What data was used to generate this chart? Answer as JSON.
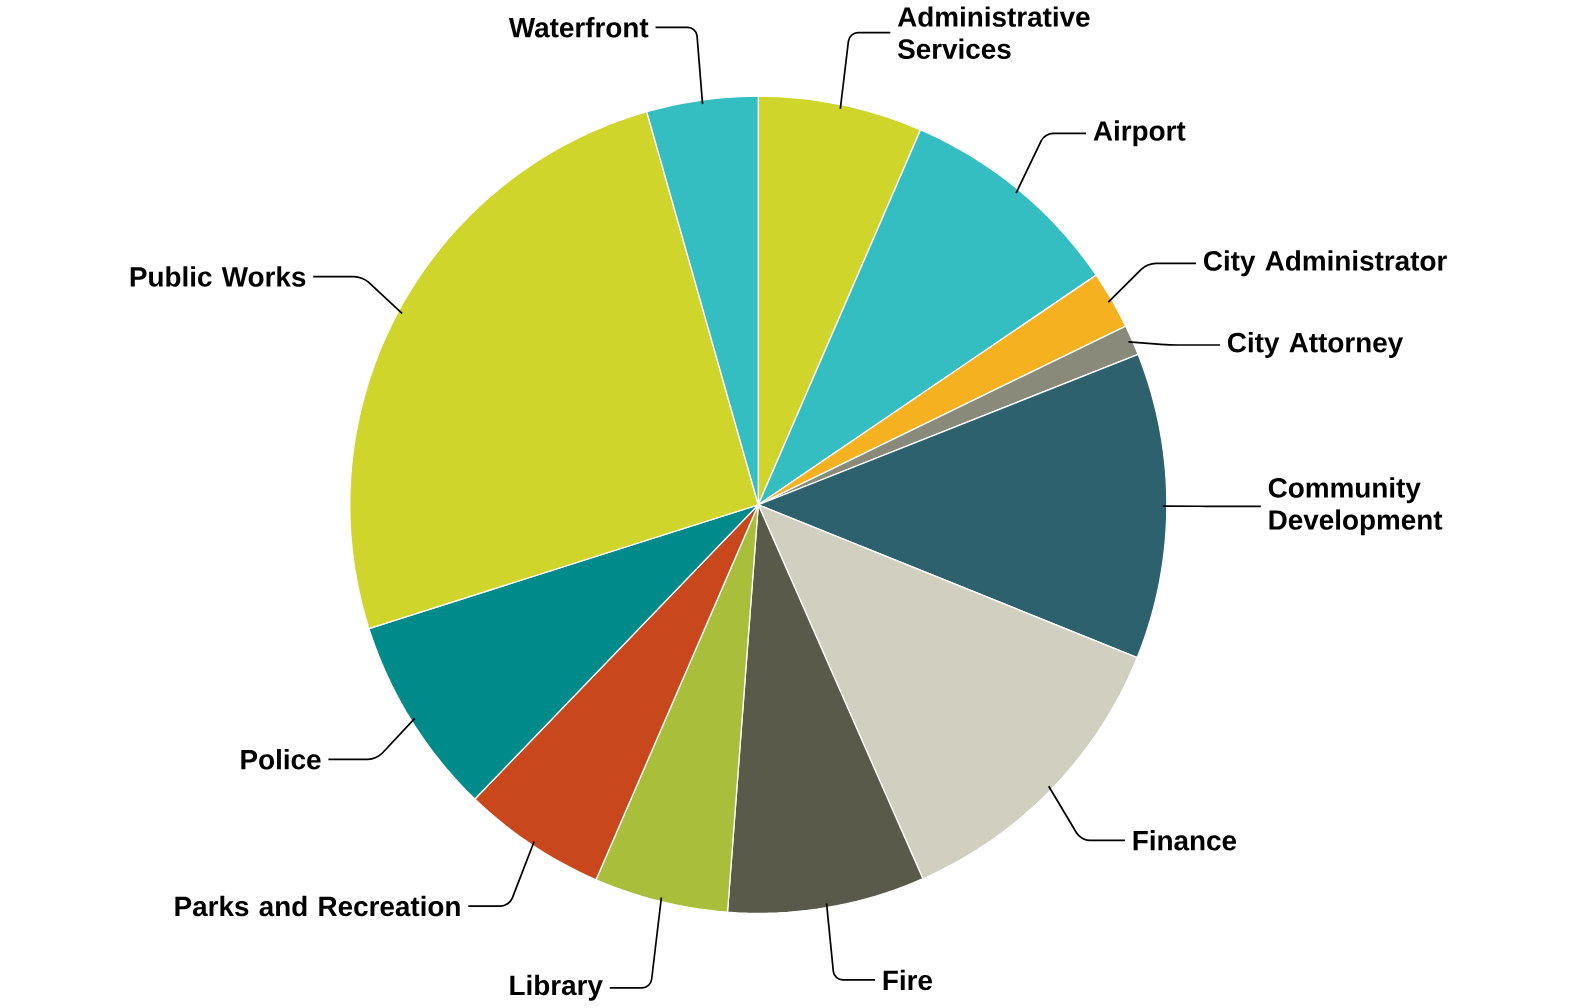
{
  "chart_data": {
    "type": "pie",
    "categories": [
      "Administrative Services",
      "Airport",
      "City Administrator",
      "City Attorney",
      "Community Development",
      "Finance",
      "Fire",
      "Library",
      "Parks and Recreation",
      "Police",
      "Public Works",
      "Waterfront"
    ],
    "values": [
      6.5,
      9.0,
      2.3,
      1.2,
      12.1,
      12.3,
      7.8,
      5.3,
      5.7,
      7.9,
      25.5,
      4.4
    ],
    "colors": [
      "#cfd52a",
      "#35bec1",
      "#f5b120",
      "#8a8a7a",
      "#2e616e",
      "#d0cfc0",
      "#5a5a4a",
      "#a9be3a",
      "#c8471c",
      "#008a8a",
      "#cfd52a",
      "#35bec1"
    ]
  }
}
